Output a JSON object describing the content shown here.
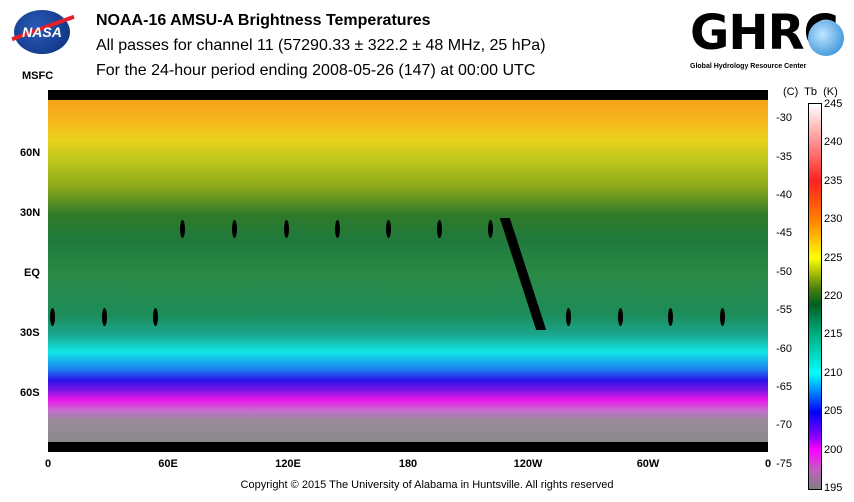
{
  "header": {
    "title": "NOAA-16 AMSU-A Brightness Temperatures",
    "subtitle": "All passes for channel 11 (57290.33 ± 322.2 ± 48 MHz, 25 hPa)",
    "period": "For the 24-hour period ending 2008-05-26 (147) at 00:00 UTC"
  },
  "logos": {
    "nasa": "NASA",
    "msfc": "MSFC",
    "ghrc": "GHRC",
    "ghrc_sub": "Global Hydrology Resource Center"
  },
  "map": {
    "lat_labels": [
      "60N",
      "30N",
      "EQ",
      "30S",
      "60S"
    ],
    "lon_labels": [
      "0",
      "60E",
      "120E",
      "180",
      "120W",
      "60W",
      "0"
    ]
  },
  "colorbar": {
    "header": "(C)  Tb  (K)",
    "kelvin": [
      "245",
      "240",
      "235",
      "230",
      "225",
      "220",
      "215",
      "210",
      "205",
      "200",
      "195"
    ],
    "celsius": [
      "-30",
      "-35",
      "-40",
      "-45",
      "-50",
      "-55",
      "-60",
      "-65",
      "-70",
      "-75"
    ],
    "range_k": [
      195,
      245
    ]
  },
  "footer": {
    "copyright": "Copyright © 2015 The University of Alabama in Huntsville.  All rights reserved"
  }
}
